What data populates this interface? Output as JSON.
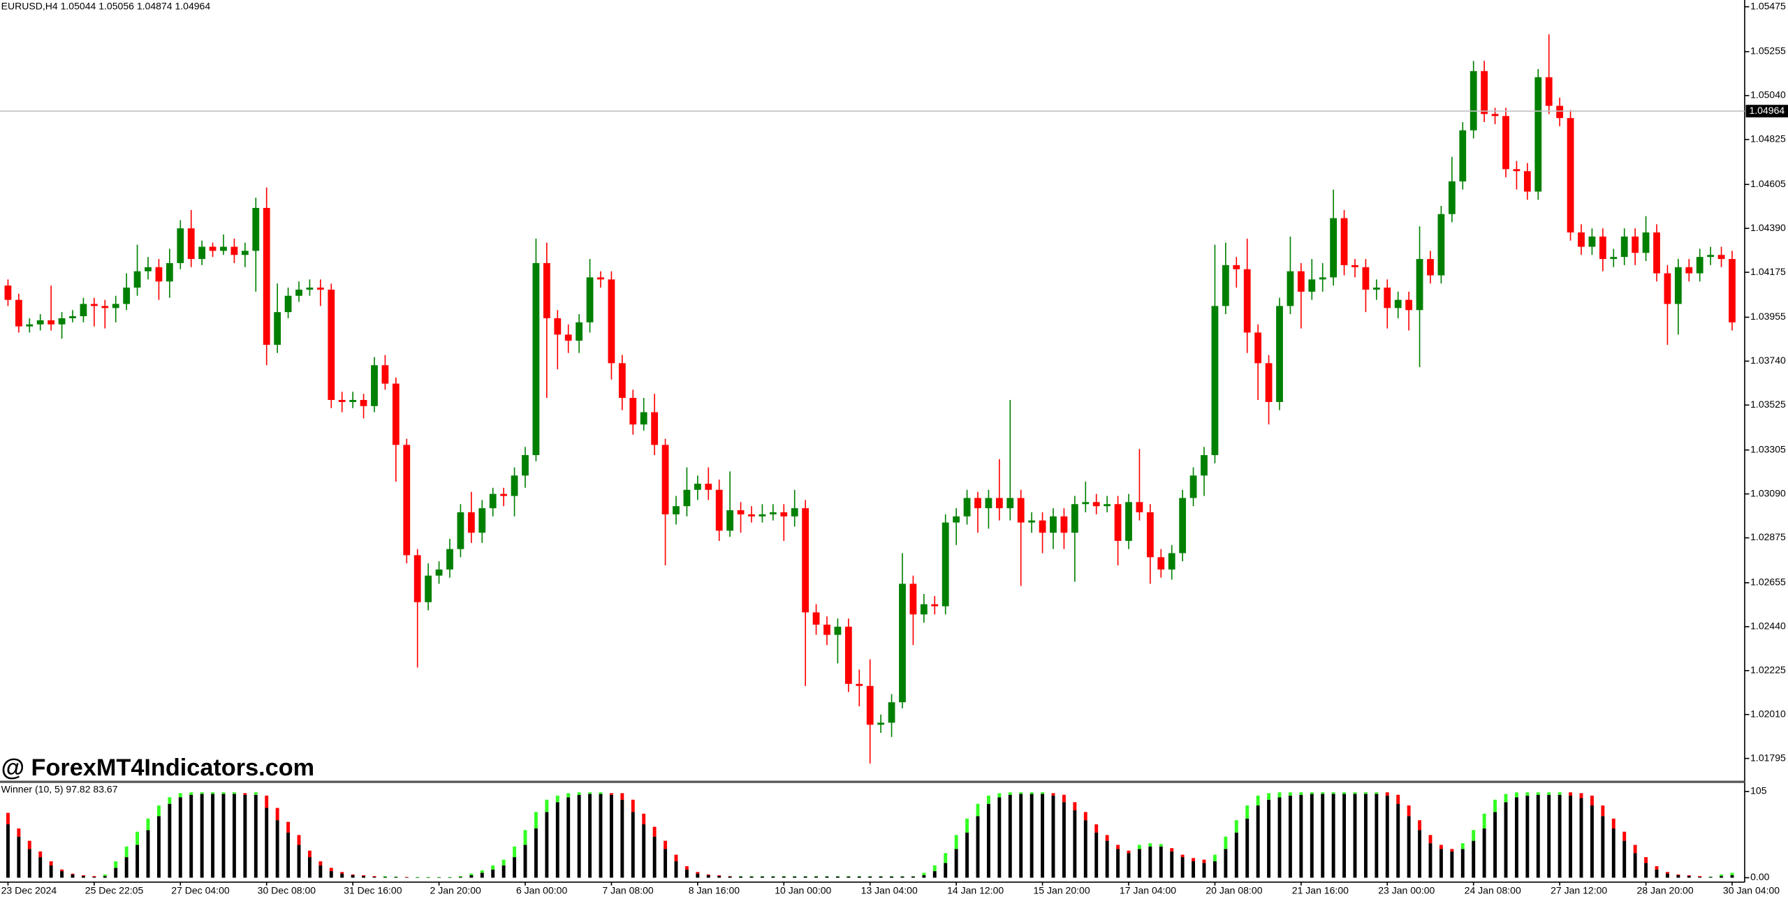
{
  "chart_data": [
    {
      "type": "candlestick",
      "title": "EURUSD,H4  1.05044 1.05056 1.04874 1.04964",
      "watermark": "@ ForexMT4Indicators.com",
      "up_color": "#008000",
      "down_color": "#ff0000",
      "ylim": [
        1.01686,
        1.05508
      ],
      "yticks": [
        1.05475,
        1.05255,
        {
          "value": 1.0504,
          "label": "1.05040"
        },
        1.04825,
        1.04605,
        {
          "value": 1.0439,
          "label": "1.04390"
        },
        1.04175,
        1.03955,
        {
          "value": 1.0374,
          "label": "1.03740"
        },
        1.03525,
        1.03305,
        {
          "value": 1.0309,
          "label": "1.03090"
        },
        1.02875,
        1.02655,
        {
          "value": 1.0244,
          "label": "1.02440"
        },
        1.02225,
        {
          "value": 1.0201,
          "label": "1.02010"
        },
        1.01795
      ],
      "current_price": 1.04964,
      "open": [
        1.0411,
        1.0404,
        1.0391,
        1.0392,
        1.0394,
        1.0392,
        1.0395,
        1.0396,
        1.0402,
        1.0401,
        1.04,
        1.0402,
        1.041,
        1.0418,
        1.042,
        1.0413,
        1.0422,
        1.0439,
        1.0424,
        1.043,
        1.0428,
        1.043,
        1.0426,
        1.0428,
        1.0449,
        1.0382,
        1.0398,
        1.0406,
        1.0409,
        1.041,
        1.0409,
        1.0355,
        1.0354,
        1.0355,
        1.0352,
        1.0372,
        1.0363,
        1.0333,
        1.0279,
        1.0256,
        1.0269,
        1.0272,
        1.0282,
        1.03,
        1.029,
        1.0302,
        1.0309,
        1.0308,
        1.0318,
        1.0328,
        1.0422,
        1.0395,
        1.0387,
        1.0384,
        1.0393,
        1.0415,
        1.0414,
        1.0373,
        1.0356,
        1.0343,
        1.0349,
        1.0333,
        1.0299,
        1.0303,
        1.0311,
        1.0314,
        1.0311,
        1.0291,
        1.0301,
        1.0299,
        1.0298,
        1.0299,
        1.03,
        1.0298,
        1.0302,
        1.0251,
        1.0245,
        1.024,
        1.0244,
        1.0216,
        1.0215,
        1.0196,
        1.0197,
        1.0207,
        1.0265,
        1.025,
        1.0255,
        1.0254,
        1.0295,
        1.0298,
        1.0307,
        1.0302,
        1.0307,
        1.0302,
        1.0307,
        1.0295,
        1.0296,
        1.029,
        1.0298,
        1.029,
        1.0304,
        1.0305,
        1.0303,
        1.0304,
        1.0286,
        1.0305,
        1.03,
        1.0278,
        1.0272,
        1.028,
        1.0307,
        1.0318,
        1.0328,
        1.0401,
        1.0421,
        1.0419,
        1.0388,
        1.0373,
        1.0354,
        1.0401,
        1.0418,
        1.0408,
        1.0414,
        1.0415,
        1.0444,
        1.0421,
        1.042,
        1.0409,
        1.041,
        1.04,
        1.0404,
        1.0399,
        1.0424,
        1.0416,
        1.0446,
        1.0462,
        1.0487,
        1.0516,
        1.0495,
        1.0494,
        1.0468,
        1.0467,
        1.0457,
        1.0513,
        1.0499,
        1.0493,
        1.0437,
        1.043,
        1.0435,
        1.0424,
        1.0425,
        1.0435,
        1.0427,
        1.0437,
        1.0417,
        1.0402,
        1.042,
        1.0417,
        1.0425,
        1.0426,
        1.0424
      ],
      "high": [
        1.0414,
        1.0407,
        1.0395,
        1.0397,
        1.0411,
        1.0398,
        1.0399,
        1.0405,
        1.0405,
        1.0404,
        1.0406,
        1.0417,
        1.0431,
        1.0425,
        1.0424,
        1.0429,
        1.0443,
        1.0448,
        1.0433,
        1.0432,
        1.0436,
        1.0434,
        1.0432,
        1.0454,
        1.0459,
        1.0412,
        1.041,
        1.0413,
        1.0414,
        1.0414,
        1.0412,
        1.0359,
        1.0359,
        1.0358,
        1.0376,
        1.0377,
        1.0366,
        1.0336,
        1.0282,
        1.0275,
        1.0276,
        1.0287,
        1.0304,
        1.031,
        1.0306,
        1.0312,
        1.0312,
        1.0322,
        1.0332,
        1.0434,
        1.0432,
        1.0399,
        1.0392,
        1.0397,
        1.0424,
        1.0418,
        1.0418,
        1.0377,
        1.036,
        1.0356,
        1.0358,
        1.0336,
        1.0308,
        1.0322,
        1.0318,
        1.0322,
        1.0316,
        1.032,
        1.0305,
        1.0303,
        1.0304,
        1.0304,
        1.0304,
        1.0311,
        1.0306,
        1.0255,
        1.0249,
        1.0248,
        1.0248,
        1.0223,
        1.0228,
        1.0201,
        1.0211,
        1.028,
        1.0269,
        1.026,
        1.0259,
        1.0299,
        1.0302,
        1.0311,
        1.031,
        1.0311,
        1.0326,
        1.0355,
        1.0311,
        1.03,
        1.03,
        1.0302,
        1.0302,
        1.0308,
        1.0315,
        1.0309,
        1.0308,
        1.0308,
        1.0309,
        1.0331,
        1.0304,
        1.0282,
        1.0284,
        1.0311,
        1.0322,
        1.0332,
        1.0431,
        1.0432,
        1.0425,
        1.0434,
        1.0392,
        1.0377,
        1.0405,
        1.0435,
        1.0422,
        1.0424,
        1.0422,
        1.0458,
        1.0448,
        1.0424,
        1.0424,
        1.0414,
        1.0414,
        1.0408,
        1.0408,
        1.044,
        1.0428,
        1.045,
        1.0474,
        1.0491,
        1.0521,
        1.0521,
        1.0498,
        1.0498,
        1.0472,
        1.0471,
        1.0517,
        1.0534,
        1.0503,
        1.0497,
        1.0441,
        1.0439,
        1.0439,
        1.0429,
        1.0439,
        1.0439,
        1.0445,
        1.0441,
        1.0421,
        1.0424,
        1.0424,
        1.0429,
        1.043,
        1.043,
        1.0428
      ],
      "low": [
        1.0401,
        1.0388,
        1.0388,
        1.0389,
        1.0389,
        1.0385,
        1.0393,
        1.0393,
        1.0391,
        1.039,
        1.0393,
        1.0399,
        1.0406,
        1.0414,
        1.0404,
        1.0405,
        1.0419,
        1.042,
        1.0421,
        1.0425,
        1.0426,
        1.0422,
        1.042,
        1.0408,
        1.0372,
        1.0378,
        1.0395,
        1.0403,
        1.0406,
        1.0401,
        1.0351,
        1.0349,
        1.0351,
        1.0346,
        1.0349,
        1.036,
        1.0315,
        1.0275,
        1.0224,
        1.0252,
        1.0265,
        1.0268,
        1.0278,
        1.0285,
        1.0285,
        1.0298,
        1.0303,
        1.0298,
        1.0312,
        1.0325,
        1.0356,
        1.037,
        1.0378,
        1.0378,
        1.0388,
        1.041,
        1.0365,
        1.035,
        1.0338,
        1.034,
        1.0328,
        1.0274,
        1.0294,
        1.0298,
        1.0306,
        1.0306,
        1.0286,
        1.0288,
        1.029,
        1.0295,
        1.0295,
        1.0296,
        1.0286,
        1.0293,
        1.0215,
        1.024,
        1.0235,
        1.0226,
        1.0212,
        1.0205,
        1.0177,
        1.0192,
        1.019,
        1.0204,
        1.0235,
        1.0246,
        1.025,
        1.025,
        1.0284,
        1.0294,
        1.029,
        1.0292,
        1.0296,
        1.0296,
        1.0264,
        1.029,
        1.028,
        1.0282,
        1.0282,
        1.0266,
        1.03,
        1.0299,
        1.03,
        1.0274,
        1.0282,
        1.0296,
        1.0265,
        1.0268,
        1.0267,
        1.0276,
        1.0303,
        1.0308,
        1.0324,
        1.0397,
        1.041,
        1.0378,
        1.0355,
        1.0343,
        1.035,
        1.0397,
        1.039,
        1.0404,
        1.0408,
        1.0411,
        1.0416,
        1.0415,
        1.0398,
        1.0404,
        1.039,
        1.0395,
        1.0389,
        1.0371,
        1.0412,
        1.0412,
        1.0442,
        1.0458,
        1.0483,
        1.0491,
        1.049,
        1.0464,
        1.0458,
        1.0453,
        1.0453,
        1.0495,
        1.0489,
        1.0433,
        1.0426,
        1.0426,
        1.0418,
        1.042,
        1.0421,
        1.0421,
        1.0423,
        1.0413,
        1.0382,
        1.0387,
        1.0413,
        1.0413,
        1.0421,
        1.042,
        1.0389
      ],
      "close": [
        1.0404,
        1.0391,
        1.0392,
        1.0394,
        1.0392,
        1.0395,
        1.0396,
        1.0402,
        1.0401,
        1.04,
        1.0402,
        1.041,
        1.0418,
        1.042,
        1.0413,
        1.0422,
        1.0439,
        1.0424,
        1.043,
        1.0428,
        1.043,
        1.0426,
        1.0428,
        1.0449,
        1.0382,
        1.0398,
        1.0406,
        1.0409,
        1.041,
        1.0409,
        1.0355,
        1.0354,
        1.0355,
        1.0352,
        1.0372,
        1.0363,
        1.0333,
        1.0279,
        1.0256,
        1.0269,
        1.0272,
        1.0282,
        1.03,
        1.029,
        1.0302,
        1.0309,
        1.0308,
        1.0318,
        1.0328,
        1.0422,
        1.0395,
        1.0387,
        1.0384,
        1.0393,
        1.0415,
        1.0414,
        1.0373,
        1.0356,
        1.0343,
        1.0349,
        1.0333,
        1.0299,
        1.0303,
        1.0311,
        1.0314,
        1.0311,
        1.0291,
        1.0301,
        1.0299,
        1.0298,
        1.0299,
        1.03,
        1.0298,
        1.0302,
        1.0251,
        1.0245,
        1.024,
        1.0244,
        1.0216,
        1.0215,
        1.0196,
        1.0197,
        1.0207,
        1.0265,
        1.025,
        1.0255,
        1.0254,
        1.0295,
        1.0298,
        1.0307,
        1.0302,
        1.0307,
        1.0302,
        1.0307,
        1.0295,
        1.0296,
        1.029,
        1.0298,
        1.029,
        1.0304,
        1.0305,
        1.0303,
        1.0304,
        1.0286,
        1.0305,
        1.03,
        1.0278,
        1.0272,
        1.028,
        1.0307,
        1.0318,
        1.0328,
        1.0401,
        1.0421,
        1.0419,
        1.0388,
        1.0373,
        1.0354,
        1.0401,
        1.0418,
        1.0408,
        1.0414,
        1.0415,
        1.0444,
        1.0421,
        1.042,
        1.0409,
        1.041,
        1.04,
        1.0404,
        1.0399,
        1.0424,
        1.0416,
        1.0446,
        1.0462,
        1.0487,
        1.0516,
        1.0495,
        1.0494,
        1.0468,
        1.0467,
        1.0457,
        1.0513,
        1.0499,
        1.0493,
        1.0437,
        1.043,
        1.0435,
        1.0424,
        1.0425,
        1.0435,
        1.0427,
        1.0437,
        1.0417,
        1.0402,
        1.042,
        1.0417,
        1.0425,
        1.0426,
        1.0424,
        1.0393
      ]
    },
    {
      "type": "bar",
      "title": "Winner (10, 5)  97.82 83.67",
      "ylim": [
        -4,
        114
      ],
      "yticks": [
        105,
        {
          "value": 0,
          "label": "0.00"
        }
      ],
      "categories": [
        "23 Dec 2024",
        null,
        null,
        null,
        null,
        null,
        null,
        null,
        "25 Dec 22:05",
        null,
        null,
        null,
        null,
        null,
        null,
        null,
        "27 Dec 04:00",
        null,
        null,
        null,
        null,
        null,
        null,
        null,
        "30 Dec 08:00",
        null,
        null,
        null,
        null,
        null,
        null,
        null,
        "31 Dec 16:00",
        null,
        null,
        null,
        null,
        null,
        null,
        null,
        "2 Jan 20:00",
        null,
        null,
        null,
        null,
        null,
        null,
        null,
        "6 Jan 00:00",
        null,
        null,
        null,
        null,
        null,
        null,
        null,
        "7 Jan 08:00",
        null,
        null,
        null,
        null,
        null,
        null,
        null,
        "8 Jan 16:00",
        null,
        null,
        null,
        null,
        null,
        null,
        null,
        "10 Jan 00:00",
        null,
        null,
        null,
        null,
        null,
        null,
        null,
        "13 Jan 04:00",
        null,
        null,
        null,
        null,
        null,
        null,
        null,
        "14 Jan 12:00",
        null,
        null,
        null,
        null,
        null,
        null,
        null,
        "15 Jan 20:00",
        null,
        null,
        null,
        null,
        null,
        null,
        null,
        "17 Jan 04:00",
        null,
        null,
        null,
        null,
        null,
        null,
        null,
        "20 Jan 08:00",
        null,
        null,
        null,
        null,
        null,
        null,
        null,
        "21 Jan 16:00",
        null,
        null,
        null,
        null,
        null,
        null,
        null,
        "23 Jan 00:00",
        null,
        null,
        null,
        null,
        null,
        null,
        null,
        "24 Jan 08:00",
        null,
        null,
        null,
        null,
        null,
        null,
        null,
        "27 Jan 12:00",
        null,
        null,
        null,
        null,
        null,
        null,
        null,
        "28 Jan 20:00",
        null,
        null,
        null,
        null,
        null,
        null,
        null,
        "30 Jan 04:00"
      ],
      "series": [
        {
          "color": "#000000",
          "values": [
            65,
            50,
            35,
            25,
            15,
            8,
            4,
            2,
            1,
            2,
            12,
            25,
            40,
            58,
            75,
            90,
            98,
            101,
            102,
            102,
            102,
            102,
            101,
            101,
            85,
            70,
            55,
            40,
            25,
            15,
            8,
            5,
            3,
            2,
            1,
            1,
            1,
            0.5,
            0.5,
            0.5,
            0.5,
            0.5,
            1,
            3,
            6,
            10,
            15,
            25,
            40,
            60,
            80,
            92,
            98,
            101,
            102,
            102,
            101,
            95,
            80,
            65,
            50,
            35,
            20,
            10,
            5,
            3,
            2,
            1.5,
            1.5,
            1.5,
            1.5,
            1.5,
            1.5,
            1.5,
            1.5,
            1.5,
            1.5,
            1.5,
            1.5,
            1.5,
            1.5,
            1.5,
            1.5,
            1.5,
            1.5,
            3,
            8,
            18,
            35,
            55,
            75,
            90,
            98,
            101,
            102,
            102,
            102,
            100,
            92,
            82,
            70,
            55,
            45,
            35,
            30,
            35,
            38,
            38,
            32,
            25,
            20,
            18,
            20,
            35,
            55,
            72,
            88,
            95,
            98,
            100,
            101,
            102,
            102,
            102,
            102,
            102,
            102,
            102,
            100,
            90,
            75,
            58,
            42,
            35,
            32,
            35,
            45,
            60,
            80,
            92,
            98,
            100,
            101,
            101,
            101,
            100,
            97,
            88,
            75,
            60,
            45,
            30,
            18,
            10,
            5,
            3,
            2,
            1,
            1,
            2,
            3
          ]
        },
        {
          "up_color": "#33ff22",
          "down_color": "#ff0000",
          "values": [
            79,
            60,
            45,
            32,
            20,
            10,
            5,
            3,
            2,
            4,
            20,
            38,
            56,
            72,
            88,
            98,
            103,
            104,
            104,
            104,
            104,
            104,
            103,
            104,
            100,
            85,
            68,
            52,
            33,
            20,
            12,
            7,
            4,
            3,
            2,
            2,
            1.5,
            1,
            1,
            1,
            1,
            1,
            2,
            5,
            9,
            15,
            22,
            38,
            58,
            80,
            95,
            100,
            103,
            104,
            104,
            104,
            103,
            103,
            95,
            78,
            62,
            45,
            28,
            14,
            7,
            4,
            3,
            2,
            2,
            2,
            2,
            2,
            2,
            2,
            2,
            2,
            2,
            2,
            2,
            2,
            2,
            2,
            2,
            2,
            2,
            6,
            15,
            30,
            52,
            72,
            90,
            100,
            103,
            104,
            104,
            104,
            104,
            103,
            101,
            92,
            80,
            65,
            52,
            40,
            33,
            40,
            42,
            41,
            36,
            28,
            24,
            22,
            28,
            50,
            70,
            88,
            100,
            103,
            104,
            104,
            104,
            104,
            104,
            104,
            104,
            104,
            104,
            104,
            104,
            101,
            88,
            70,
            52,
            40,
            35,
            42,
            58,
            78,
            95,
            102,
            104,
            104,
            104,
            104,
            104,
            104,
            103,
            100,
            88,
            72,
            56,
            40,
            25,
            14,
            7,
            4,
            3,
            2,
            1.5,
            4,
            6
          ]
        }
      ]
    }
  ]
}
